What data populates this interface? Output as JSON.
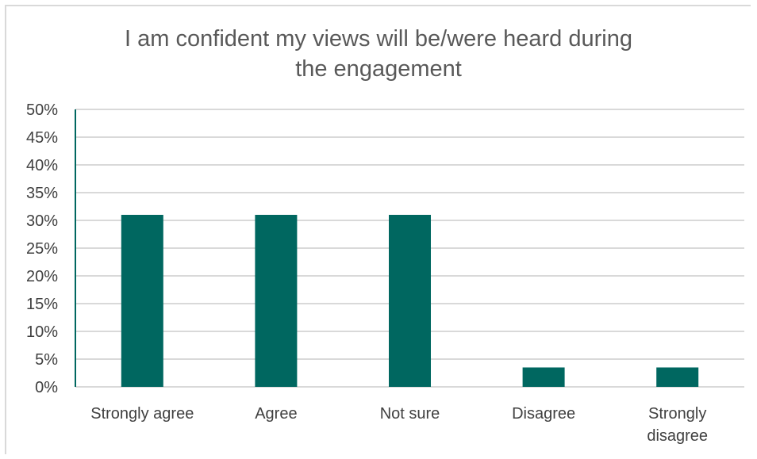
{
  "chart_data": {
    "type": "bar",
    "title": "I am confident my views will be/were heard during the engagement",
    "title_lines": [
      "I am confident my views will be/were heard during",
      "the engagement"
    ],
    "categories": [
      "Strongly agree",
      "Agree",
      "Not sure",
      "Disagree",
      "Strongly disagree"
    ],
    "category_lines": [
      [
        "Strongly agree"
      ],
      [
        "Agree"
      ],
      [
        "Not sure"
      ],
      [
        "Disagree"
      ],
      [
        "Strongly",
        "disagree"
      ]
    ],
    "values": [
      31,
      31,
      31,
      3.5,
      3.5
    ],
    "ylim": [
      0,
      50
    ],
    "ytick_step": 5,
    "ytick_labels": [
      "0%",
      "5%",
      "10%",
      "15%",
      "20%",
      "25%",
      "30%",
      "35%",
      "40%",
      "45%",
      "50%"
    ],
    "xlabel": "",
    "ylabel": "",
    "grid": true,
    "legend": "none",
    "bar_color": "#006760",
    "grid_color": "#d9d9d9",
    "axis_color": "#006760"
  }
}
